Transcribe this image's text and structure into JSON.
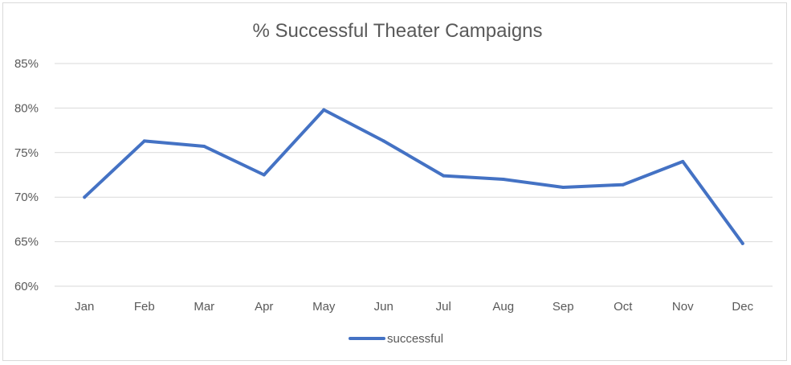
{
  "chart_data": {
    "type": "line",
    "title": "% Successful Theater Campaigns",
    "xlabel": "",
    "ylabel": "",
    "categories": [
      "Jan",
      "Feb",
      "Mar",
      "Apr",
      "May",
      "Jun",
      "Jul",
      "Aug",
      "Sep",
      "Oct",
      "Nov",
      "Dec"
    ],
    "y_tick_labels": [
      "60%",
      "65%",
      "70%",
      "75%",
      "80%",
      "85%"
    ],
    "y_ticks": [
      0.6,
      0.65,
      0.7,
      0.75,
      0.8,
      0.85
    ],
    "ylim": [
      0.6,
      0.85
    ],
    "grid": true,
    "legend_position": "bottom",
    "series": [
      {
        "name": "successful",
        "color": "#4472c4",
        "values": [
          0.7,
          0.763,
          0.757,
          0.725,
          0.798,
          0.763,
          0.724,
          0.72,
          0.711,
          0.714,
          0.74,
          0.648
        ]
      }
    ]
  }
}
